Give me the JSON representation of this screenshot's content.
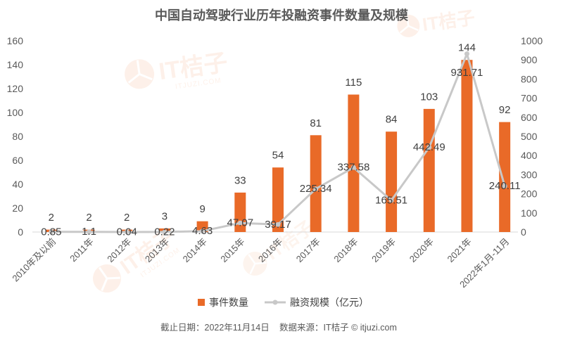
{
  "chart_data": {
    "type": "bar",
    "title": "中国自动驾驶行业历年投融资事件数量及规模",
    "categories": [
      "2010年及以前",
      "2011年",
      "2012年",
      "2013年",
      "2014年",
      "2015年",
      "2016年",
      "2017年",
      "2018年",
      "2019年",
      "2020年",
      "2021年",
      "2022年1月-11月"
    ],
    "series": [
      {
        "name": "事件数量",
        "type": "bar",
        "axis": "left",
        "color": "#E96A28",
        "values": [
          2,
          2,
          2,
          3,
          9,
          33,
          54,
          81,
          115,
          84,
          103,
          144,
          92
        ]
      },
      {
        "name": "融资规模（亿元）",
        "type": "line",
        "axis": "right",
        "color": "#C8C8C8",
        "values": [
          0.85,
          1.1,
          0.04,
          0.22,
          4.63,
          47.07,
          39.17,
          225.34,
          337.58,
          165.51,
          442.49,
          931.71,
          240.11
        ]
      }
    ],
    "y_left": {
      "lim": [
        0,
        160
      ],
      "ticks": [
        0,
        20,
        40,
        60,
        80,
        100,
        120,
        140,
        160
      ]
    },
    "y_right": {
      "lim": [
        0,
        1000
      ],
      "ticks": [
        0,
        100,
        200,
        300,
        400,
        500,
        600,
        700,
        800,
        900,
        1000
      ]
    },
    "data_labels": true,
    "grid": false,
    "legend_position": "bottom"
  },
  "footer": {
    "cutoff_date": "截止日期：2022年11月14日",
    "source": "数据来源：IT桔子 © itjuzi.com"
  },
  "watermark": {
    "brand": "IT桔子",
    "domain": "ITJUZI.COM"
  }
}
